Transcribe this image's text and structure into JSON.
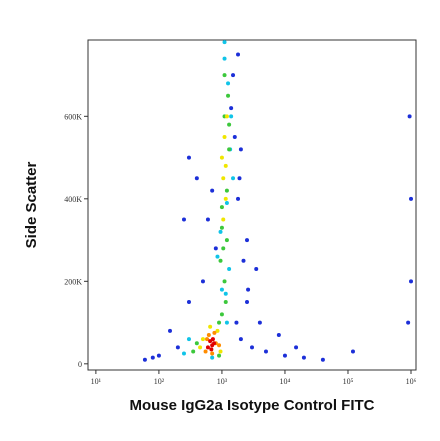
{
  "chart_data": {
    "type": "scatter",
    "xlabel": "Mouse IgG2a Isotype Control FITC",
    "ylabel": "Side Scatter",
    "xscale": "log",
    "xlim": [
      7.5,
      1200000
    ],
    "xticks": [
      {
        "value": 10,
        "label": "10¹"
      },
      {
        "value": 100,
        "label": "10²"
      },
      {
        "value": 1000,
        "label": "10³"
      },
      {
        "value": 10000,
        "label": "10⁴"
      },
      {
        "value": 100000,
        "label": "10⁵"
      },
      {
        "value": 1000000,
        "label": "10⁶"
      }
    ],
    "ylim": [
      -15000,
      785000
    ],
    "yticks": [
      0,
      {
        "value": 200000,
        "label": "200K"
      },
      {
        "value": 400000,
        "label": "400K"
      },
      {
        "value": 600000,
        "label": "600K"
      }
    ],
    "series": [
      {
        "color": "#1c2fd8",
        "x": [
          100,
          200,
          150,
          300,
          2000,
          3000,
          5000,
          10000,
          20000,
          40000,
          1800,
          2500,
          1600,
          2200,
          1500,
          800,
          600,
          500,
          400,
          1700,
          1900,
          120000,
          900000,
          1000000,
          1000000,
          950000,
          2500,
          4000,
          3500,
          300,
          250,
          700,
          1400,
          2000,
          60,
          80,
          15000,
          8000,
          1800,
          2600
        ],
        "y": [
          20000,
          40000,
          80000,
          150000,
          60000,
          40000,
          30000,
          20000,
          15000,
          10000,
          400000,
          300000,
          550000,
          250000,
          700000,
          280000,
          350000,
          200000,
          450000,
          100000,
          450000,
          30000,
          100000,
          200000,
          400000,
          600000,
          150000,
          100000,
          230000,
          500000,
          350000,
          420000,
          620000,
          520000,
          10000,
          15000,
          40000,
          70000,
          750000,
          180000
        ]
      },
      {
        "color": "#10c4e8",
        "x": [
          300,
          250,
          1200,
          1000,
          1300,
          1400,
          950,
          1100,
          1250,
          1500,
          1150,
          1350,
          850,
          700,
          1100,
          1200
        ],
        "y": [
          60000,
          25000,
          100000,
          180000,
          230000,
          600000,
          320000,
          740000,
          680000,
          450000,
          170000,
          520000,
          260000,
          15000,
          780000,
          390000
        ]
      },
      {
        "color": "#3cc83c",
        "x": [
          400,
          350,
          1000,
          1100,
          900,
          950,
          1200,
          1250,
          1100,
          1000,
          1300,
          1150,
          1050,
          1200,
          900,
          1000,
          1100,
          1300
        ],
        "y": [
          50000,
          30000,
          120000,
          200000,
          100000,
          250000,
          300000,
          650000,
          700000,
          380000,
          520000,
          150000,
          280000,
          420000,
          20000,
          330000,
          600000,
          580000
        ]
      },
      {
        "color": "#f0e600",
        "x": [
          450,
          500,
          850,
          950,
          650,
          1000,
          1050,
          1100,
          1150,
          1200,
          1050,
          1150
        ],
        "y": [
          40000,
          60000,
          80000,
          30000,
          90000,
          500000,
          450000,
          550000,
          400000,
          600000,
          350000,
          480000
        ]
      },
      {
        "color": "#ff8c00",
        "x": [
          550,
          800,
          620,
          900,
          700,
          580,
          760
        ],
        "y": [
          30000,
          50000,
          70000,
          45000,
          25000,
          60000,
          75000
        ]
      },
      {
        "color": "#e00000",
        "x": [
          600,
          700,
          650,
          750,
          680,
          720
        ],
        "y": [
          40000,
          45000,
          55000,
          50000,
          35000,
          60000
        ]
      }
    ]
  }
}
